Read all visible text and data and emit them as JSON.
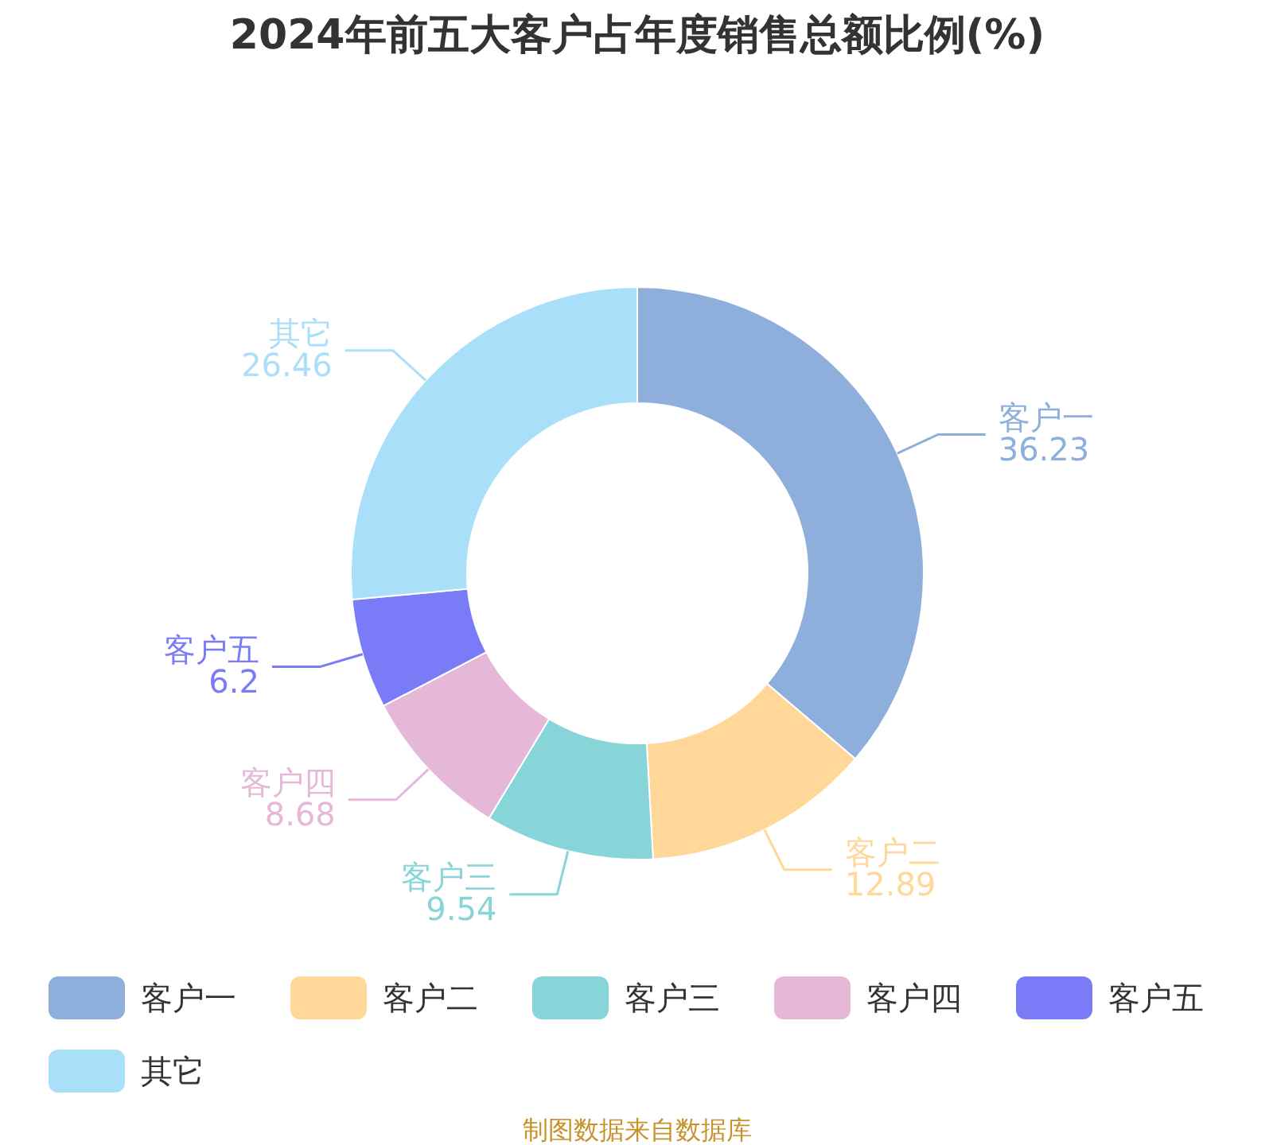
{
  "chart_data": {
    "type": "donut",
    "title": "2024年前五大客户占年度销售总额比例(%)",
    "categories": [
      "客户一",
      "客户二",
      "客户三",
      "客户四",
      "客户五",
      "其它"
    ],
    "values": [
      36.23,
      12.89,
      9.54,
      8.68,
      6.2,
      26.46
    ],
    "colors": [
      "#8eaedb",
      "#ffd899",
      "#87d5d9",
      "#e6b8d8",
      "#7a7bf7",
      "#a9dff9"
    ],
    "data_labels": true,
    "legend": "bottom",
    "annotations": [
      "制图数据来自数据库"
    ]
  }
}
